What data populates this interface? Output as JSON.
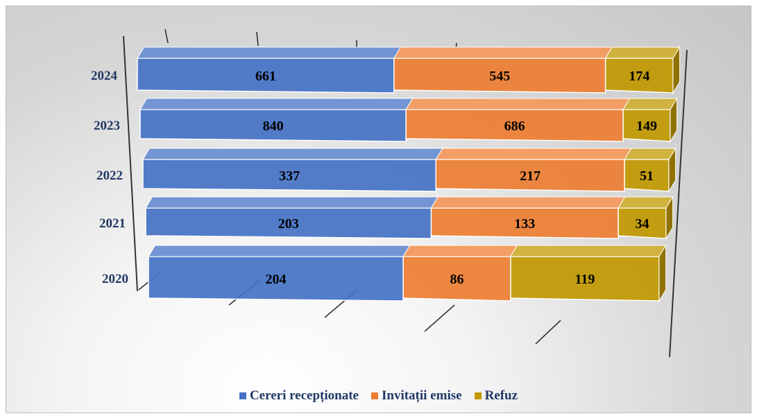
{
  "chart_data": {
    "type": "bar",
    "orientation": "horizontal",
    "stacked": true,
    "style": "3d",
    "categories": [
      "2024",
      "2023",
      "2022",
      "2021",
      "2020"
    ],
    "series": [
      {
        "name": "Cereri recepționate",
        "color": "#4472c4",
        "values": [
          661,
          840,
          337,
          203,
          204
        ]
      },
      {
        "name": "Invitații emise",
        "color": "#ed7d31",
        "values": [
          545,
          686,
          217,
          133,
          86
        ]
      },
      {
        "name": "Refuz",
        "color": "#c09800",
        "values": [
          174,
          149,
          51,
          34,
          119
        ]
      }
    ],
    "data_labels": true,
    "legend_position": "bottom",
    "grid": true
  },
  "legend": {
    "items": [
      {
        "label": "Cereri recepționate",
        "color": "#4472c4"
      },
      {
        "label": "Invitații emise",
        "color": "#ed7d31"
      },
      {
        "label": "Refuz",
        "color": "#c09800"
      }
    ]
  }
}
